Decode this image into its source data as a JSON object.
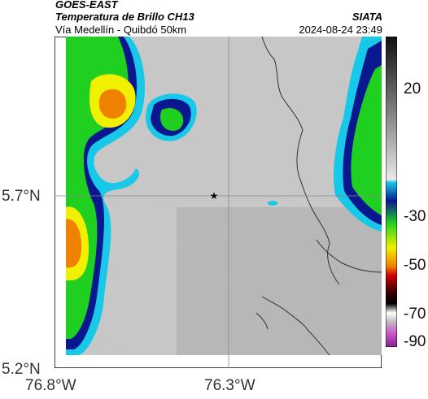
{
  "header": {
    "satellite": "GOES-EAST",
    "product": "Temperatura de Brillo CH13",
    "organization": "SIATA",
    "route": "Vía Medellín - Quibdó 50km",
    "datetime": "2024-08-24 23:49"
  },
  "axes": {
    "lat_ticks": [
      "5.7°N",
      "5.2°N"
    ],
    "lon_ticks": [
      "76.8°W",
      "76.3°W"
    ]
  },
  "colorbar": {
    "ticks": [
      "20",
      "-30",
      "-50",
      "-70",
      "-90"
    ],
    "value_range": [
      30,
      -95
    ]
  },
  "map": {
    "marker": "star-marker",
    "colors": {
      "warm_gray": "#c8c8c8",
      "cyan": "#18c8e8",
      "blue": "#0a1890",
      "green": "#20d020",
      "yellow": "#f0f000",
      "orange": "#f08000",
      "border": "#303030"
    }
  }
}
